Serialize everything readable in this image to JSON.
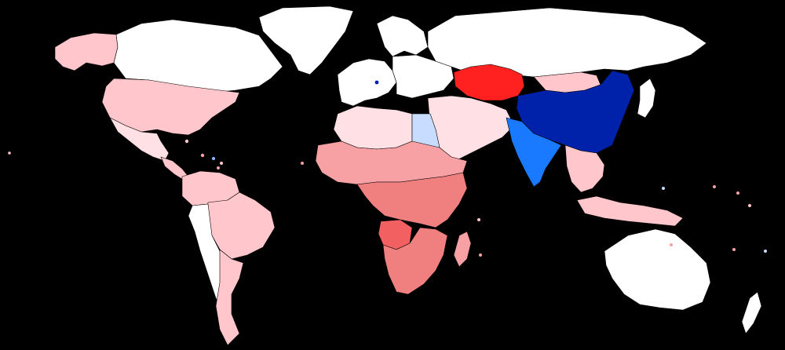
{
  "map": {
    "background": "#000000",
    "scale_colors": {
      "white": "#ffffff",
      "pink_very_light": "#ffe0e4",
      "pink_light": "#ffc6cb",
      "salmon": "#f7a1a5",
      "salmon_dark": "#f08080",
      "red_medium": "#f26062",
      "red": "#ff2020",
      "blue_very_light": "#c8dcff",
      "blue_light": "#8fb4ff",
      "blue_medium": "#1a7aff",
      "blue_dark": "#0022aa"
    },
    "regions": [
      {
        "name": "greenland",
        "color": "white"
      },
      {
        "name": "canada",
        "color": "white"
      },
      {
        "name": "alaska",
        "color": "pink_light"
      },
      {
        "name": "united-states",
        "color": "pink_light"
      },
      {
        "name": "mexico",
        "color": "pink_very_light"
      },
      {
        "name": "central-america",
        "color": "pink_light"
      },
      {
        "name": "south-america-north",
        "color": "pink_light"
      },
      {
        "name": "brazil",
        "color": "pink_light"
      },
      {
        "name": "southern-cone",
        "color": "white"
      },
      {
        "name": "argentina",
        "color": "pink_light"
      },
      {
        "name": "scandinavia",
        "color": "white"
      },
      {
        "name": "western-europe",
        "color": "white"
      },
      {
        "name": "eastern-europe",
        "color": "white"
      },
      {
        "name": "russia",
        "color": "white"
      },
      {
        "name": "kazakhstan",
        "color": "red"
      },
      {
        "name": "mongolia",
        "color": "pink_light"
      },
      {
        "name": "china",
        "color": "blue_dark"
      },
      {
        "name": "india",
        "color": "blue_medium"
      },
      {
        "name": "middle-east",
        "color": "pink_very_light"
      },
      {
        "name": "egypt",
        "color": "blue_very_light"
      },
      {
        "name": "north-africa",
        "color": "pink_very_light"
      },
      {
        "name": "sahel",
        "color": "salmon"
      },
      {
        "name": "central-africa",
        "color": "salmon_dark"
      },
      {
        "name": "angola",
        "color": "red_medium"
      },
      {
        "name": "southern-africa",
        "color": "salmon_dark"
      },
      {
        "name": "madagascar",
        "color": "salmon"
      },
      {
        "name": "southeast-asia",
        "color": "pink_light"
      },
      {
        "name": "indonesia",
        "color": "pink_light"
      },
      {
        "name": "australia",
        "color": "white"
      },
      {
        "name": "japan",
        "color": "white"
      },
      {
        "name": "new-zealand",
        "color": "white"
      }
    ]
  }
}
